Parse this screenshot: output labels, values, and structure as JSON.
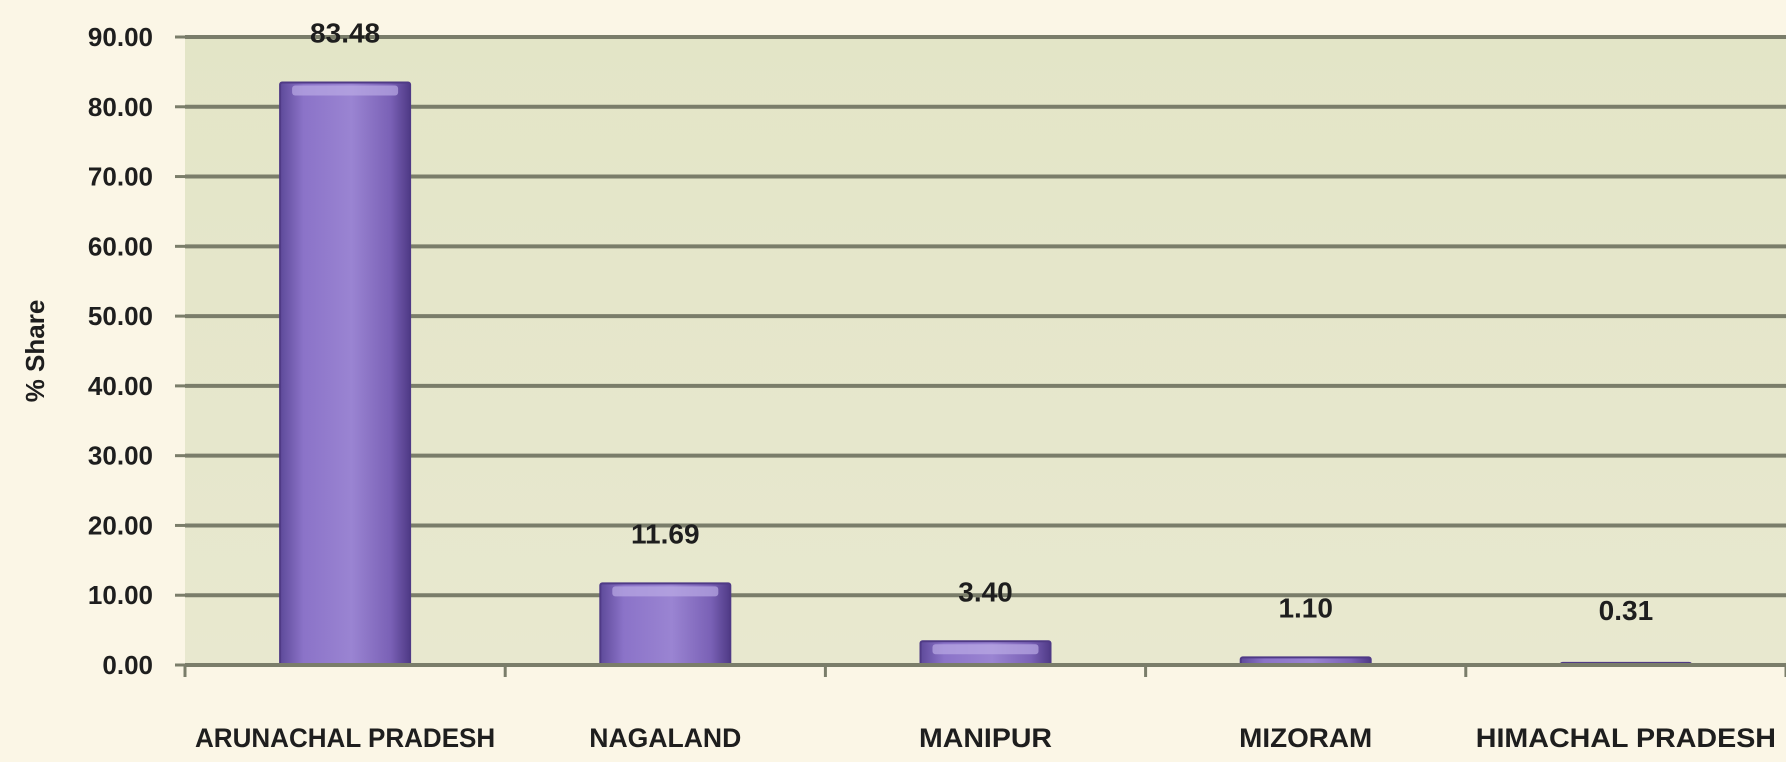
{
  "chart_data": {
    "type": "bar",
    "ylabel": "% Share",
    "categories": [
      "ARUNACHAL PRADESH",
      "NAGALAND",
      "MANIPUR",
      "MIZORAM",
      "HIMACHAL PRADESH"
    ],
    "values": [
      83.48,
      11.69,
      3.4,
      1.1,
      0.31
    ],
    "value_labels": [
      "83.48",
      "11.69",
      "3.40",
      "1.10",
      "0.31"
    ],
    "ylim": [
      0,
      90
    ],
    "yticks": [
      "0.00",
      "10.00",
      "20.00",
      "30.00",
      "40.00",
      "50.00",
      "60.00",
      "70.00",
      "80.00",
      "90.00"
    ],
    "grid": true,
    "legend": "none",
    "colors": {
      "bar": "#8a6fc4",
      "bar_edge": "#4f3a86",
      "plot_background": "#e5e6cb",
      "gridline": "#7a7d6a",
      "page_background": "#fbf6e6"
    }
  }
}
